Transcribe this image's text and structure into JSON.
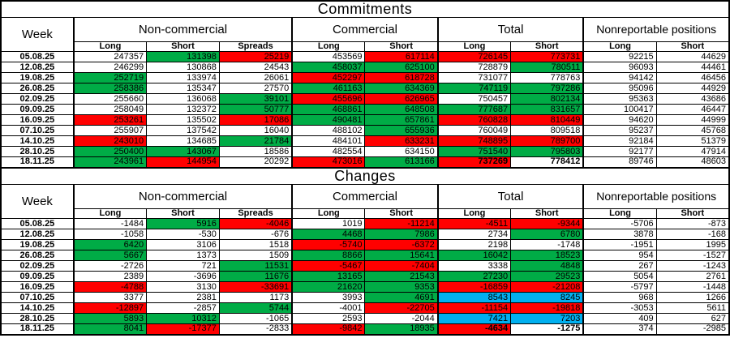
{
  "colors": {
    "w": "#FFFFFF",
    "g": "#00AC46",
    "r": "#FF0000",
    "b": "#00B0F0",
    "grid": "#000000"
  },
  "header": {
    "week_label": "Week",
    "groups": [
      {
        "label": "Non-commercial",
        "columns": [
          "Long",
          "Short",
          "Spreads"
        ]
      },
      {
        "label": "Commercial",
        "columns": [
          "Long",
          "Short"
        ]
      },
      {
        "label": "Total",
        "columns": [
          "Long",
          "Short"
        ]
      },
      {
        "label": "Nonreportable positions",
        "columns": [
          "Long",
          "Short"
        ]
      }
    ]
  },
  "chart_data": [
    {
      "type": "table",
      "title": "Commitments",
      "rows": [
        {
          "week": "05.08.25",
          "cells": [
            [
              "247357",
              "w"
            ],
            [
              "131398",
              "g"
            ],
            [
              "25219",
              "r"
            ],
            [
              "453569",
              "w"
            ],
            [
              "617114",
              "r"
            ],
            [
              "726145",
              "r"
            ],
            [
              "773731",
              "r"
            ],
            [
              "92215",
              "w"
            ],
            [
              "44629",
              "w"
            ]
          ]
        },
        {
          "week": "12.08.25",
          "cells": [
            [
              "246299",
              "w"
            ],
            [
              "130868",
              "w"
            ],
            [
              "24543",
              "w"
            ],
            [
              "458037",
              "g"
            ],
            [
              "625100",
              "g"
            ],
            [
              "728879",
              "w"
            ],
            [
              "780511",
              "g"
            ],
            [
              "96093",
              "w"
            ],
            [
              "44461",
              "w"
            ]
          ]
        },
        {
          "week": "19.08.25",
          "cells": [
            [
              "252719",
              "g"
            ],
            [
              "133974",
              "w"
            ],
            [
              "26061",
              "w"
            ],
            [
              "452297",
              "r"
            ],
            [
              "618728",
              "r"
            ],
            [
              "731077",
              "w"
            ],
            [
              "778763",
              "w"
            ],
            [
              "94142",
              "w"
            ],
            [
              "46456",
              "w"
            ]
          ]
        },
        {
          "week": "26.08.25",
          "cells": [
            [
              "258386",
              "g"
            ],
            [
              "135347",
              "w"
            ],
            [
              "27570",
              "w"
            ],
            [
              "461163",
              "g"
            ],
            [
              "634369",
              "g"
            ],
            [
              "747119",
              "g"
            ],
            [
              "797286",
              "g"
            ],
            [
              "95096",
              "w"
            ],
            [
              "44929",
              "w"
            ]
          ]
        },
        {
          "week": "02.09.25",
          "cells": [
            [
              "255660",
              "w"
            ],
            [
              "136068",
              "w"
            ],
            [
              "39101",
              "g"
            ],
            [
              "455696",
              "r"
            ],
            [
              "626965",
              "r"
            ],
            [
              "750457",
              "w"
            ],
            [
              "802134",
              "g"
            ],
            [
              "95363",
              "w"
            ],
            [
              "43686",
              "w"
            ]
          ]
        },
        {
          "week": "09.09.25",
          "cells": [
            [
              "258049",
              "w"
            ],
            [
              "132372",
              "w"
            ],
            [
              "50777",
              "g"
            ],
            [
              "468861",
              "g"
            ],
            [
              "648508",
              "g"
            ],
            [
              "777687",
              "g"
            ],
            [
              "831657",
              "g"
            ],
            [
              "100417",
              "w"
            ],
            [
              "46447",
              "w"
            ]
          ]
        },
        {
          "week": "16.09.25",
          "cells": [
            [
              "253261",
              "r"
            ],
            [
              "135502",
              "w"
            ],
            [
              "17086",
              "r"
            ],
            [
              "490481",
              "g"
            ],
            [
              "657861",
              "g"
            ],
            [
              "760828",
              "r"
            ],
            [
              "810449",
              "r"
            ],
            [
              "94620",
              "w"
            ],
            [
              "44999",
              "w"
            ]
          ]
        },
        {
          "week": "07.10.25",
          "cells": [
            [
              "255907",
              "w"
            ],
            [
              "137542",
              "w"
            ],
            [
              "16040",
              "w"
            ],
            [
              "488102",
              "w"
            ],
            [
              "655936",
              "g"
            ],
            [
              "760049",
              "w"
            ],
            [
              "809518",
              "w"
            ],
            [
              "95237",
              "w"
            ],
            [
              "45768",
              "w"
            ]
          ]
        },
        {
          "week": "14.10.25",
          "cells": [
            [
              "243010",
              "r"
            ],
            [
              "134685",
              "w"
            ],
            [
              "21784",
              "g"
            ],
            [
              "484101",
              "w"
            ],
            [
              "633231",
              "r"
            ],
            [
              "748895",
              "r"
            ],
            [
              "789700",
              "r"
            ],
            [
              "92184",
              "w"
            ],
            [
              "51379",
              "w"
            ]
          ]
        },
        {
          "week": "28.10.25",
          "cells": [
            [
              "250400",
              "g"
            ],
            [
              "143067",
              "g"
            ],
            [
              "18586",
              "w"
            ],
            [
              "482554",
              "w"
            ],
            [
              "634150",
              "w"
            ],
            [
              "751540",
              "g"
            ],
            [
              "795803",
              "g"
            ],
            [
              "92177",
              "w"
            ],
            [
              "47914",
              "w"
            ]
          ]
        },
        {
          "week": "18.11.25",
          "cells": [
            [
              "243961",
              "g"
            ],
            [
              "144954",
              "r"
            ],
            [
              "20292",
              "w"
            ],
            [
              "473016",
              "r"
            ],
            [
              "613166",
              "g"
            ],
            [
              "737269",
              "r",
              "bold"
            ],
            [
              "778412",
              "w",
              "bold"
            ],
            [
              "89746",
              "w"
            ],
            [
              "48603",
              "w"
            ]
          ]
        }
      ]
    },
    {
      "type": "table",
      "title": "Changes",
      "rows": [
        {
          "week": "05.08.25",
          "cells": [
            [
              "-1484",
              "w"
            ],
            [
              "5916",
              "g"
            ],
            [
              "-4046",
              "r"
            ],
            [
              "1019",
              "w"
            ],
            [
              "-11214",
              "r"
            ],
            [
              "-4511",
              "r"
            ],
            [
              "-9344",
              "r"
            ],
            [
              "-5706",
              "w"
            ],
            [
              "-873",
              "w"
            ]
          ]
        },
        {
          "week": "12.08.25",
          "cells": [
            [
              "-1058",
              "w"
            ],
            [
              "-530",
              "w"
            ],
            [
              "-676",
              "w"
            ],
            [
              "4468",
              "g"
            ],
            [
              "7986",
              "g"
            ],
            [
              "2734",
              "w"
            ],
            [
              "6780",
              "g"
            ],
            [
              "3878",
              "w"
            ],
            [
              "-168",
              "w"
            ]
          ]
        },
        {
          "week": "19.08.25",
          "cells": [
            [
              "6420",
              "g"
            ],
            [
              "3106",
              "w"
            ],
            [
              "1518",
              "w"
            ],
            [
              "-5740",
              "r"
            ],
            [
              "-6372",
              "r"
            ],
            [
              "2198",
              "w"
            ],
            [
              "-1748",
              "w"
            ],
            [
              "-1951",
              "w"
            ],
            [
              "1995",
              "w"
            ]
          ]
        },
        {
          "week": "26.08.25",
          "cells": [
            [
              "5667",
              "g"
            ],
            [
              "1373",
              "w"
            ],
            [
              "1509",
              "w"
            ],
            [
              "8866",
              "g"
            ],
            [
              "15641",
              "g"
            ],
            [
              "16042",
              "g"
            ],
            [
              "18523",
              "g"
            ],
            [
              "954",
              "w"
            ],
            [
              "-1527",
              "w"
            ]
          ]
        },
        {
          "week": "02.09.25",
          "cells": [
            [
              "-2726",
              "w"
            ],
            [
              "721",
              "w"
            ],
            [
              "11531",
              "g"
            ],
            [
              "-5467",
              "r"
            ],
            [
              "-7404",
              "r"
            ],
            [
              "3338",
              "w"
            ],
            [
              "4848",
              "g"
            ],
            [
              "267",
              "w"
            ],
            [
              "-1243",
              "w"
            ]
          ]
        },
        {
          "week": "09.09.25",
          "cells": [
            [
              "2389",
              "w"
            ],
            [
              "-3696",
              "w"
            ],
            [
              "11676",
              "g"
            ],
            [
              "13165",
              "g"
            ],
            [
              "21543",
              "g"
            ],
            [
              "27230",
              "g"
            ],
            [
              "29523",
              "g"
            ],
            [
              "5054",
              "w"
            ],
            [
              "2761",
              "w"
            ]
          ]
        },
        {
          "week": "16.09.25",
          "cells": [
            [
              "-4788",
              "r"
            ],
            [
              "3130",
              "w"
            ],
            [
              "-33691",
              "r"
            ],
            [
              "21620",
              "g"
            ],
            [
              "9353",
              "g"
            ],
            [
              "-16859",
              "r"
            ],
            [
              "-21208",
              "r"
            ],
            [
              "-5797",
              "w"
            ],
            [
              "-1448",
              "w"
            ]
          ]
        },
        {
          "week": "07.10.25",
          "cells": [
            [
              "3377",
              "w"
            ],
            [
              "2381",
              "w"
            ],
            [
              "1173",
              "w"
            ],
            [
              "3993",
              "w"
            ],
            [
              "4691",
              "g"
            ],
            [
              "8543",
              "b"
            ],
            [
              "8245",
              "b"
            ],
            [
              "968",
              "w"
            ],
            [
              "1266",
              "w"
            ]
          ]
        },
        {
          "week": "14.10.25",
          "cells": [
            [
              "-12897",
              "r"
            ],
            [
              "-2857",
              "w"
            ],
            [
              "5744",
              "g"
            ],
            [
              "-4001",
              "w"
            ],
            [
              "-22705",
              "r"
            ],
            [
              "-11154",
              "r"
            ],
            [
              "-19818",
              "r"
            ],
            [
              "-3053",
              "w"
            ],
            [
              "5611",
              "w"
            ]
          ]
        },
        {
          "week": "28.10.25",
          "cells": [
            [
              "5893",
              "g"
            ],
            [
              "10312",
              "g"
            ],
            [
              "-1065",
              "w"
            ],
            [
              "2593",
              "w"
            ],
            [
              "-2044",
              "w"
            ],
            [
              "7421",
              "b"
            ],
            [
              "7203",
              "b"
            ],
            [
              "409",
              "w"
            ],
            [
              "627",
              "w"
            ]
          ]
        },
        {
          "week": "18.11.25",
          "cells": [
            [
              "8041",
              "g"
            ],
            [
              "-17377",
              "r"
            ],
            [
              "-2833",
              "w"
            ],
            [
              "-9842",
              "r"
            ],
            [
              "18935",
              "g"
            ],
            [
              "-4634",
              "r",
              "bold"
            ],
            [
              "-1275",
              "w",
              "bold"
            ],
            [
              "374",
              "w"
            ],
            [
              "-2985",
              "w"
            ]
          ]
        }
      ]
    }
  ]
}
